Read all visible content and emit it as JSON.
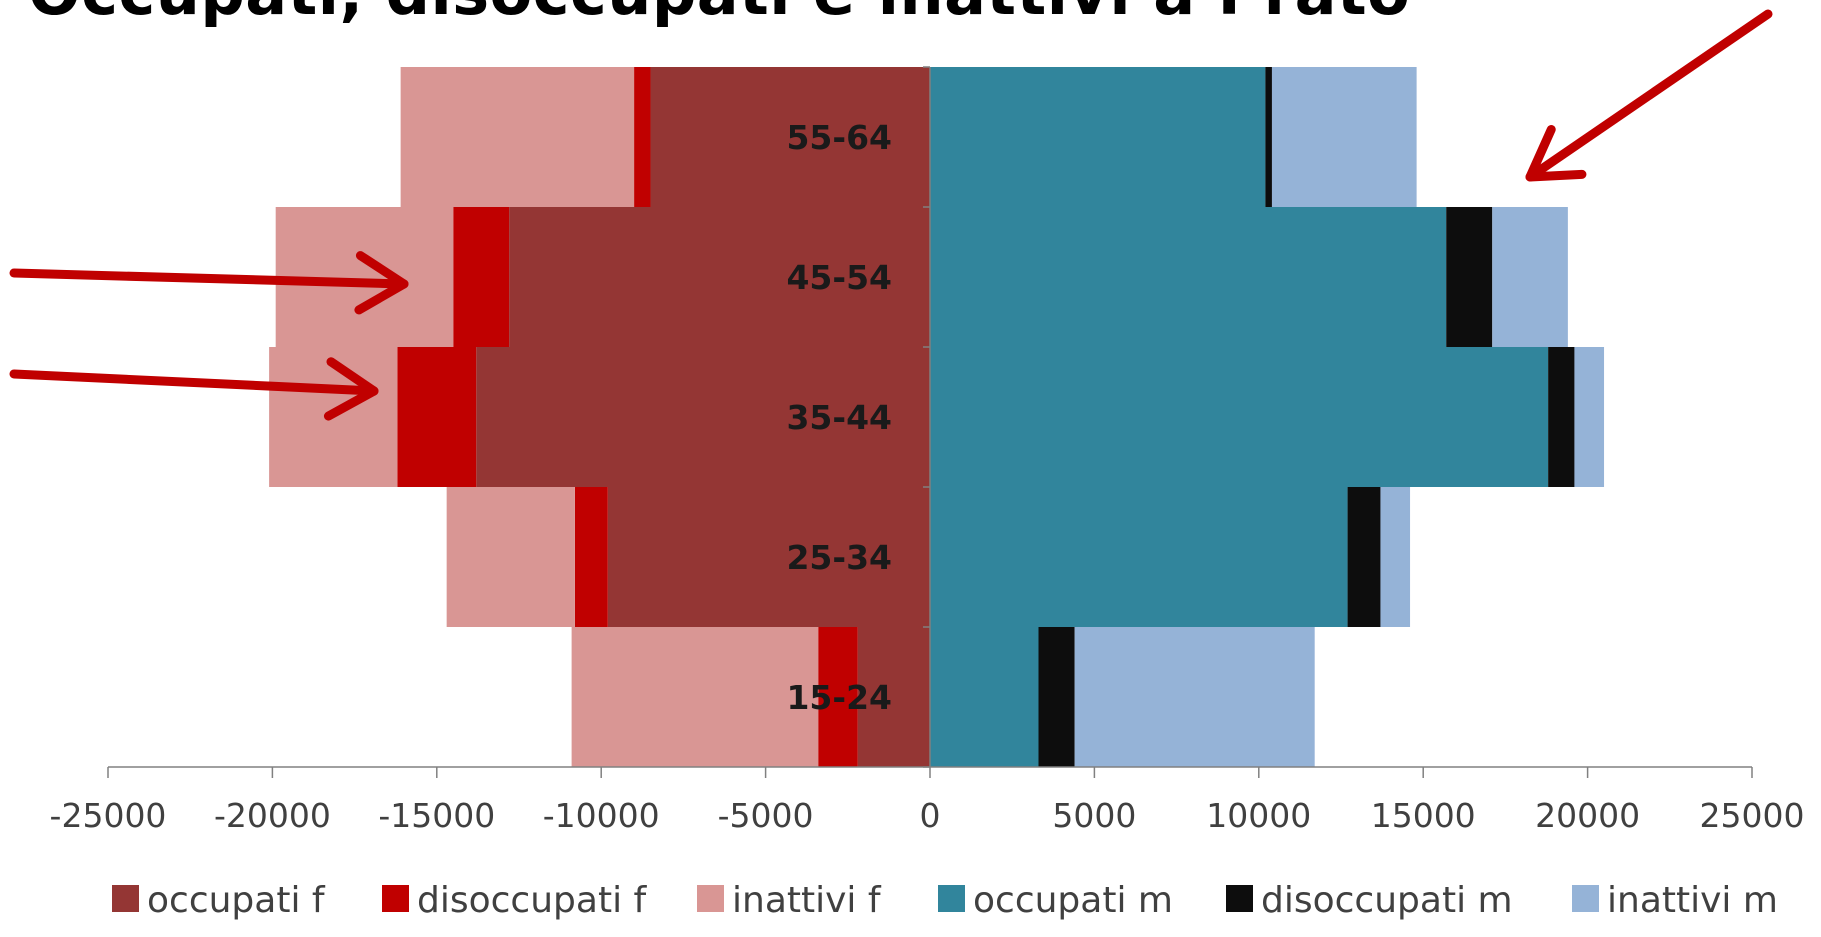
{
  "slide": {
    "title": "Occupati, disoccupati e inattivi a Prato"
  },
  "colors": {
    "occupati_f": "#943634",
    "disoccupati_f": "#C00000",
    "inattivi_f": "#D99694",
    "occupati_m": "#31859C",
    "disoccupati_m": "#0D0D0D",
    "inattivi_m": "#95B3D7",
    "arrow": "#C00000",
    "axis": "#808080"
  },
  "chart_data": {
    "type": "bar",
    "orientation": "horizontal",
    "stacked": true,
    "title": "",
    "xlabel": "",
    "ylabel": "",
    "categories": [
      "15-24",
      "25-34",
      "35-44",
      "45-54",
      "55-64"
    ],
    "xlim": [
      -25000,
      25000
    ],
    "xticks": [
      -25000,
      -20000,
      -15000,
      -10000,
      -5000,
      0,
      5000,
      10000,
      15000,
      20000,
      25000
    ],
    "grid": false,
    "legend": "bottom",
    "series": [
      {
        "name": "occupati f",
        "color": "#943634",
        "values": [
          -2200,
          -9800,
          -13800,
          -12800,
          -8500
        ]
      },
      {
        "name": "disoccupati f",
        "color": "#C00000",
        "values": [
          -1200,
          -1000,
          -2400,
          -1700,
          -500
        ]
      },
      {
        "name": "inattivi f",
        "color": "#D99694",
        "values": [
          -7500,
          -3900,
          -3900,
          -5400,
          -7100
        ]
      },
      {
        "name": "occupati m",
        "color": "#31859C",
        "values": [
          3300,
          12700,
          18800,
          15700,
          10200
        ]
      },
      {
        "name": "disoccupati m",
        "color": "#0D0D0D",
        "values": [
          1100,
          1000,
          800,
          1400,
          200
        ]
      },
      {
        "name": "inattivi m",
        "color": "#95B3D7",
        "values": [
          7300,
          900,
          900,
          2300,
          4400
        ]
      }
    ],
    "annotations": [
      {
        "type": "arrow",
        "points_to": "inattivi f 45-54"
      },
      {
        "type": "arrow",
        "points_to": "inattivi f 35-44"
      },
      {
        "type": "arrow",
        "points_to": "inattivi m 55-64"
      }
    ]
  }
}
